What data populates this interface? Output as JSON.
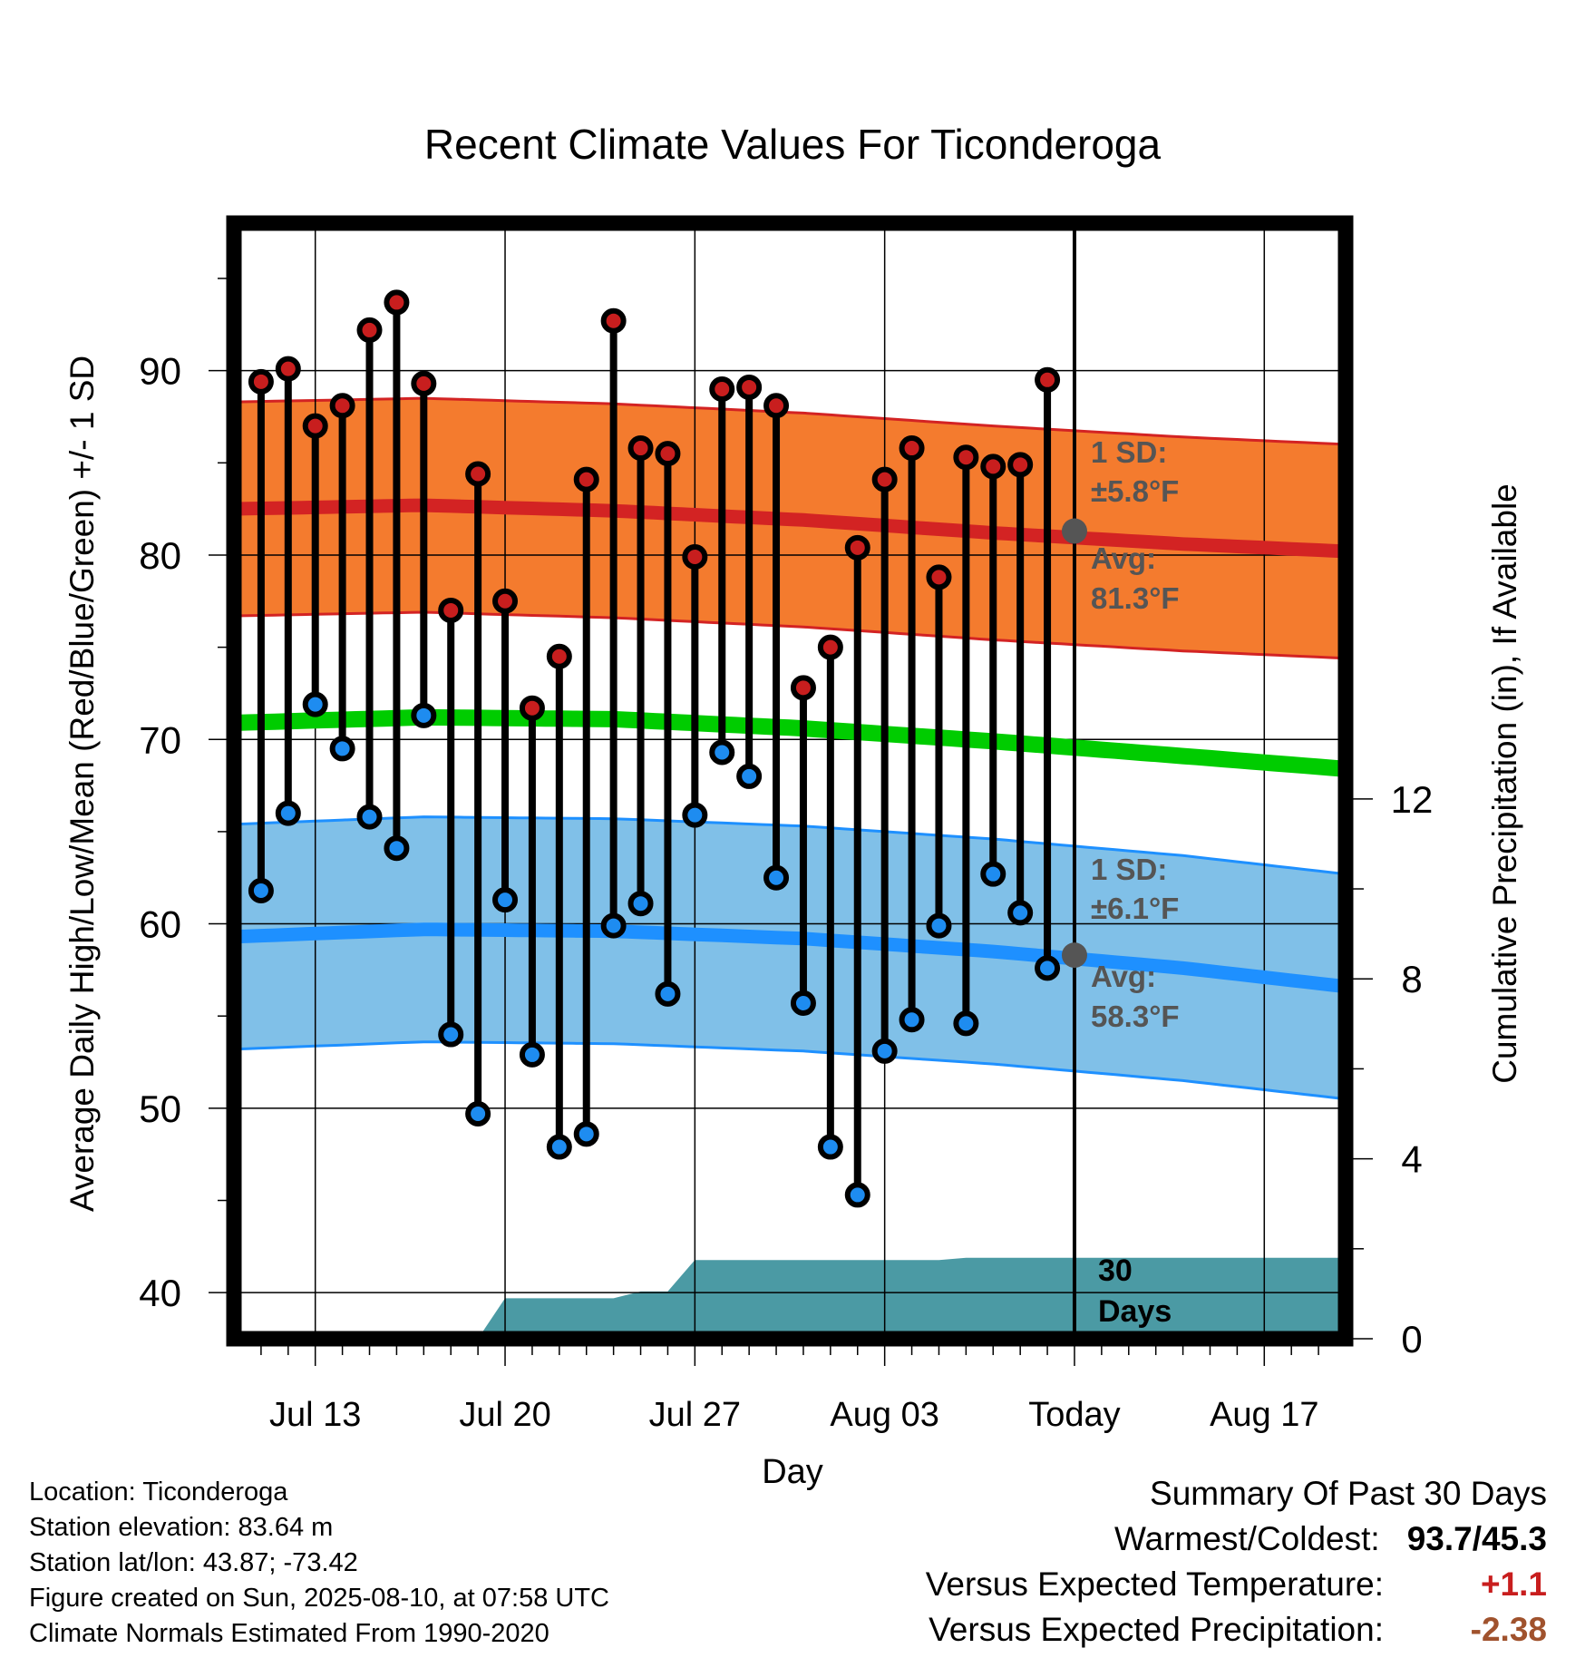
{
  "title": "Recent Climate Values For Ticonderoga",
  "chart_data": {
    "type": "line",
    "title": "Recent Climate Values For Ticonderoga",
    "xlabel": "Day",
    "ylabel_left": "Average Daily High/Low/Mean (Red/Blue/Green) +/- 1 SD",
    "ylabel_right": "Cumulative Precipitation (in), If Available",
    "x_ticks": [
      "Jul 13",
      "Jul 20",
      "Jul 27",
      "Aug 03",
      "Today",
      "Aug 17"
    ],
    "x_range": [
      "Jul 10",
      "Aug 20"
    ],
    "y_left_ticks": [
      40,
      50,
      60,
      70,
      80,
      90
    ],
    "y_left_range": [
      37.5,
      98
    ],
    "y_right_ticks": [
      0,
      4,
      8,
      12
    ],
    "y_right_range": [
      0,
      24.8
    ],
    "grid": true,
    "today_date": "Aug 10",
    "dates": [
      "Jul 11",
      "Jul 12",
      "Jul 13",
      "Jul 14",
      "Jul 15",
      "Jul 16",
      "Jul 17",
      "Jul 18",
      "Jul 19",
      "Jul 20",
      "Jul 21",
      "Jul 22",
      "Jul 23",
      "Jul 24",
      "Jul 25",
      "Jul 26",
      "Jul 27",
      "Jul 28",
      "Jul 29",
      "Jul 30",
      "Jul 31",
      "Aug 01",
      "Aug 02",
      "Aug 03",
      "Aug 04",
      "Aug 05",
      "Aug 06",
      "Aug 07",
      "Aug 08",
      "Aug 09"
    ],
    "highs": [
      89.4,
      90.1,
      87.0,
      88.1,
      92.2,
      93.7,
      89.3,
      77.0,
      84.4,
      77.5,
      71.7,
      74.5,
      84.1,
      92.7,
      85.8,
      85.5,
      79.9,
      89.0,
      89.1,
      88.1,
      72.8,
      75.0,
      80.4,
      84.1,
      85.8,
      78.8,
      85.3,
      84.8,
      84.9,
      89.5
    ],
    "lows": [
      61.8,
      66.0,
      71.9,
      69.5,
      65.8,
      64.1,
      71.3,
      54.0,
      49.7,
      61.3,
      52.9,
      47.9,
      48.6,
      59.9,
      61.1,
      56.2,
      65.9,
      69.3,
      68.0,
      62.5,
      55.7,
      47.9,
      45.3,
      53.1,
      54.8,
      59.9,
      54.6,
      62.7,
      60.6,
      57.6
    ],
    "normal_dates": [
      "Jul 10",
      "Jul 17",
      "Jul 24",
      "Jul 31",
      "Aug 07",
      "Aug 14",
      "Aug 20"
    ],
    "normal_high": [
      82.5,
      82.7,
      82.4,
      81.9,
      81.2,
      80.6,
      80.2
    ],
    "normal_high_sd": 5.8,
    "normal_low": [
      59.3,
      59.7,
      59.6,
      59.2,
      58.5,
      57.6,
      56.6
    ],
    "normal_low_sd": 6.1,
    "normal_mean": [
      70.9,
      71.2,
      71.1,
      70.6,
      69.9,
      69.1,
      68.4
    ],
    "precip_dates": [
      "Jul 19",
      "Jul 20",
      "Jul 24",
      "Jul 25",
      "Jul 26",
      "Jul 27",
      "Aug 05",
      "Aug 06",
      "Aug 20"
    ],
    "precip_cumulative": [
      0,
      0.9,
      0.9,
      1.05,
      1.05,
      1.75,
      1.75,
      1.8,
      1.8
    ],
    "annotations": {
      "high_sd_label": "1 SD:",
      "high_sd_value": "±5.8°F",
      "high_avg_label": "Avg:",
      "high_avg_value": "81.3°F",
      "high_avg_today": 81.3,
      "low_sd_label": "1 SD:",
      "low_sd_value": "±6.1°F",
      "low_avg_label": "Avg:",
      "low_avg_value": "58.3°F",
      "low_avg_today": 58.3,
      "precip_label_1": "30",
      "precip_label_2": "Days"
    },
    "colors": {
      "high_band": "#F47B2E",
      "high_line": "#D32323",
      "low_band": "#80C0E8",
      "low_line": "#1E90FF",
      "mean_line": "#00CC00",
      "precip": "#4B9AA4",
      "high_dot": "#C81E1E",
      "low_dot": "#1E8CF0",
      "today_dot": "#555555"
    }
  },
  "footer": {
    "location": "Location: Ticonderoga",
    "elevation": "Station elevation: 83.64 m",
    "latlon": "Station lat/lon: 43.87; -73.42",
    "created": "Figure created on Sun, 2025-08-10, at 07:58 UTC",
    "normals": "Climate Normals Estimated From 1990-2020"
  },
  "summary": {
    "heading": "Summary Of Past 30 Days",
    "warm_cold_label": "Warmest/Coldest:",
    "warm_cold_value": "93.7/45.3",
    "temp_label": "Versus Expected Temperature:",
    "temp_value": "+1.1",
    "temp_color": "#C81E1E",
    "precip_label": "Versus Expected Precipitation:",
    "precip_value": "-2.38",
    "precip_color": "#A0522D"
  }
}
